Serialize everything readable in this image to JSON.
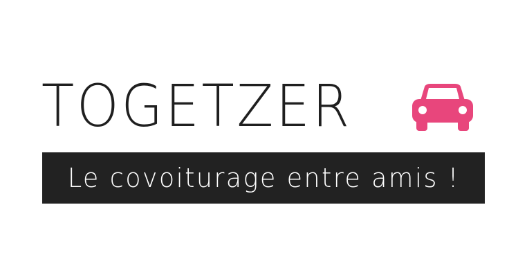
{
  "logo": {
    "brand_name": "TOGETZER",
    "tagline": "Le covoiturage entre amis !",
    "icon": "car-icon",
    "colors": {
      "text": "#1f1f1f",
      "accent": "#e8467c",
      "bar_background": "#222222",
      "bar_text": "#ffffff"
    }
  }
}
